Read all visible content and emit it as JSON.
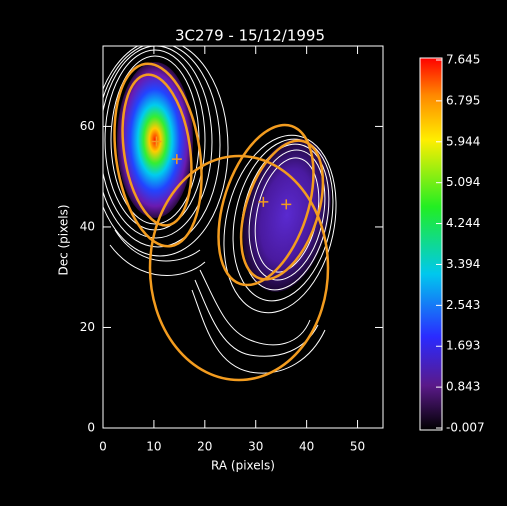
{
  "chart_data": {
    "type": "contour",
    "title": "3C279 - 15/12/1995",
    "x_label": "RA (pixels)",
    "y_label": "Dec (pixels)",
    "xlim": [
      0,
      55
    ],
    "ylim": [
      0,
      76
    ],
    "xticks": [
      0,
      10,
      20,
      30,
      40,
      50
    ],
    "yticks": [
      0,
      20,
      40,
      60
    ],
    "series": [
      {
        "color": "#f39c1f",
        "x": [
          10.5,
          14.5,
          31.5,
          36
        ],
        "y": [
          57,
          53.5,
          45,
          44.5
        ]
      }
    ],
    "clim": [
      -0.007,
      7.645
    ],
    "cticks": [
      {
        "value": -0.007,
        "label": "-0.007"
      },
      0.843,
      1.693,
      2.543,
      3.394,
      4.244,
      5.094,
      5.944,
      6.795,
      7.645
    ]
  }
}
